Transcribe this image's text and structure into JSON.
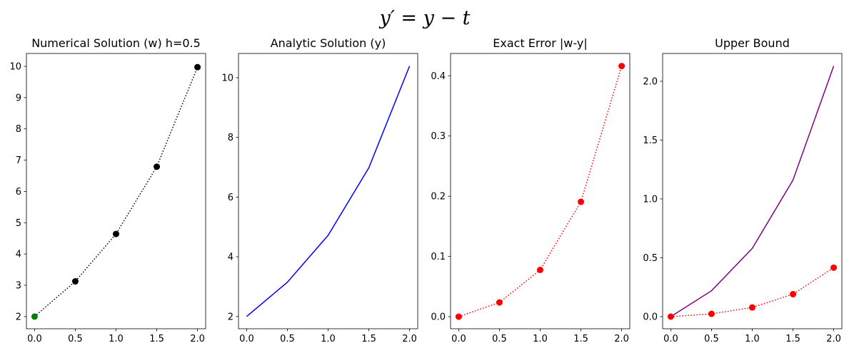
{
  "title": "y′ = y − t",
  "chart_data": [
    {
      "type": "line",
      "title": "Numerical Solution (w) h=0.5",
      "x": [
        0,
        0.5,
        1,
        1.5,
        2
      ],
      "series": [
        {
          "color": "black",
          "linestyle": "dotted",
          "marker": true,
          "marker_colors": [
            "green",
            "black",
            "black",
            "black",
            "black"
          ],
          "values": [
            2,
            3.125,
            4.6406,
            6.791,
            9.9729
          ]
        }
      ],
      "xlim": [
        -0.1,
        2.1
      ],
      "xticks": [
        {
          "value": 0,
          "label": "0.0"
        },
        0.5,
        {
          "value": 1,
          "label": "1.0"
        },
        1.5,
        {
          "value": 2,
          "label": "2.0"
        }
      ],
      "ylim": [
        1.61,
        10.41
      ],
      "yticks": [
        2,
        3,
        4,
        5,
        6,
        7,
        8,
        9,
        10
      ]
    },
    {
      "type": "line",
      "title": "Analytic Solution (y)",
      "x": [
        0,
        0.5,
        1,
        1.5,
        2
      ],
      "series": [
        {
          "color": "blue",
          "linestyle": "solid",
          "marker": false,
          "values": [
            2,
            3.1487,
            4.7183,
            6.9817,
            10.3891
          ]
        }
      ],
      "xlim": [
        -0.1,
        2.1
      ],
      "xticks": [
        {
          "value": 0,
          "label": "0.0"
        },
        0.5,
        {
          "value": 1,
          "label": "1.0"
        },
        1.5,
        {
          "value": 2,
          "label": "2.0"
        }
      ],
      "ylim": [
        1.59,
        10.81
      ],
      "yticks": [
        2,
        4,
        6,
        8,
        10
      ]
    },
    {
      "type": "line",
      "title": "Exact Error |w-y|",
      "x": [
        0,
        0.5,
        1,
        1.5,
        2
      ],
      "series": [
        {
          "color": "red",
          "linestyle": "dotted",
          "marker": true,
          "values": [
            0,
            0.0237,
            0.0777,
            0.1907,
            0.4162
          ]
        }
      ],
      "xlim": [
        -0.1,
        2.1
      ],
      "xticks": [
        {
          "value": 0,
          "label": "0.0"
        },
        0.5,
        {
          "value": 1,
          "label": "1.0"
        },
        1.5,
        {
          "value": 2,
          "label": "2.0"
        }
      ],
      "ylim": [
        -0.02,
        0.437
      ],
      "yticks": [
        {
          "value": 0,
          "label": "0.0"
        },
        0.1,
        0.2,
        0.3,
        0.4
      ]
    },
    {
      "type": "line",
      "title": "Upper Bound",
      "x": [
        0,
        0.5,
        1,
        1.5,
        2
      ],
      "series": [
        {
          "color": "purple",
          "linestyle": "solid",
          "marker": false,
          "values": [
            0,
            0.22,
            0.58,
            1.16,
            2.13
          ]
        },
        {
          "color": "red",
          "linestyle": "dotted",
          "marker": true,
          "values": [
            0,
            0.0237,
            0.0777,
            0.1907,
            0.4162
          ]
        }
      ],
      "xlim": [
        -0.1,
        2.1
      ],
      "xticks": [
        {
          "value": 0,
          "label": "0.0"
        },
        0.5,
        {
          "value": 1,
          "label": "1.0"
        },
        1.5,
        {
          "value": 2,
          "label": "2.0"
        }
      ],
      "ylim": [
        -0.103,
        2.236
      ],
      "yticks": [
        {
          "value": 0,
          "label": "0.0"
        },
        0.5,
        {
          "value": 1,
          "label": "1.0"
        },
        1.5,
        {
          "value": 2,
          "label": "2.0"
        }
      ]
    }
  ]
}
